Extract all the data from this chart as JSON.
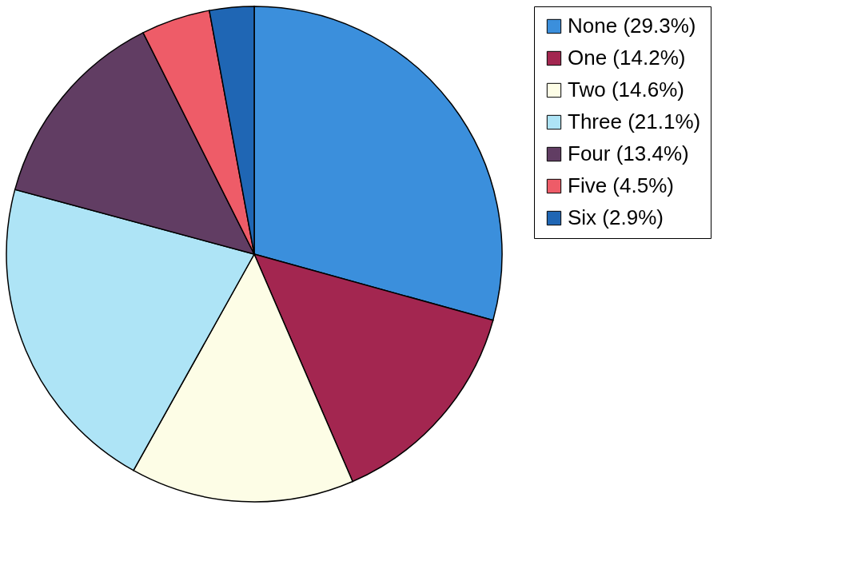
{
  "chart_data": {
    "type": "pie",
    "categories": [
      "None (29.3%)",
      "One (14.2%)",
      "Two (14.6%)",
      "Three (21.1%)",
      "Four (13.4%)",
      "Five (4.5%)",
      "Six (2.9%)"
    ],
    "values": [
      29.3,
      14.2,
      14.6,
      21.1,
      13.4,
      4.5,
      2.9
    ],
    "colors": [
      "#3b8fdc",
      "#a32650",
      "#fdfde6",
      "#aee4f6",
      "#613d63",
      "#ee5c68",
      "#1f66b4"
    ],
    "legend": "right"
  }
}
